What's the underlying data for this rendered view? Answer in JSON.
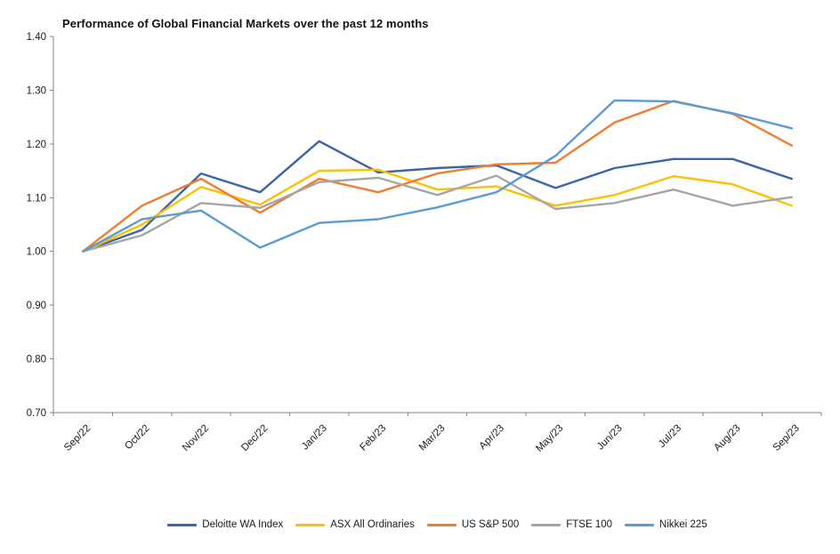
{
  "chart_data": {
    "type": "line",
    "title": "Performance of Global Financial Markets over the past 12 months",
    "xlabel": "",
    "ylabel": "",
    "ylim": [
      0.7,
      1.4
    ],
    "y_tick_step": 0.1,
    "y_tick_labels": [
      "0.70",
      "0.80",
      "0.90",
      "1.00",
      "1.10",
      "1.20",
      "1.30",
      "1.40"
    ],
    "grid": false,
    "legend_position": "bottom",
    "axis_color": "#868686",
    "label_color": "#1a1a1a",
    "categories": [
      "Sep/22",
      "Oct/22",
      "Nov/22",
      "Dec/22",
      "Jan/23",
      "Feb/23",
      "Mar/23",
      "Apr/23",
      "May/23",
      "Jun/23",
      "Jul/23",
      "Aug/23",
      "Sep/23"
    ],
    "series": [
      {
        "name": "Deloitte WA Index",
        "color": "#3C64A7",
        "values": [
          1.0,
          1.04,
          1.145,
          1.11,
          1.205,
          1.147,
          1.155,
          1.16,
          1.118,
          1.155,
          1.172,
          1.172,
          1.135
        ]
      },
      {
        "name": "ASX All Ordinaries",
        "color": "#FFC000",
        "values": [
          1.0,
          1.05,
          1.12,
          1.087,
          1.15,
          1.152,
          1.115,
          1.121,
          1.085,
          1.105,
          1.14,
          1.125,
          1.085
        ]
      },
      {
        "name": "US S&P 500",
        "color": "#ED7D31",
        "values": [
          1.0,
          1.085,
          1.135,
          1.072,
          1.135,
          1.11,
          1.145,
          1.162,
          1.165,
          1.24,
          1.28,
          1.256,
          1.197
        ]
      },
      {
        "name": "FTSE 100",
        "color": "#A5A5A5",
        "values": [
          1.0,
          1.03,
          1.09,
          1.081,
          1.129,
          1.137,
          1.105,
          1.141,
          1.079,
          1.09,
          1.115,
          1.085,
          1.101
        ]
      },
      {
        "name": "Nikkei 225",
        "color": "#5B9BD5",
        "values": [
          1.0,
          1.06,
          1.076,
          1.007,
          1.053,
          1.06,
          1.082,
          1.11,
          1.178,
          1.281,
          1.279,
          1.257,
          1.229
        ]
      }
    ]
  }
}
